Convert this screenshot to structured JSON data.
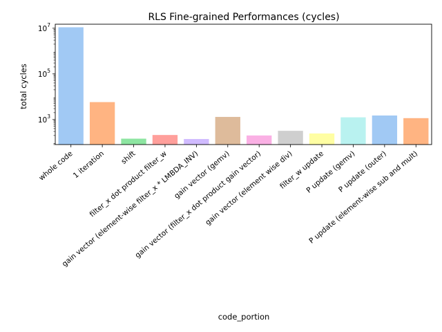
{
  "chart_data": {
    "type": "bar",
    "title": "RLS Fine-grained Performances (cycles)",
    "xlabel": "code_portion",
    "ylabel": "total cycles",
    "yscale": "log",
    "ylim": [
      80,
      15000000
    ],
    "yticks": [
      {
        "value": 1000,
        "base": "10",
        "exp": "3"
      },
      {
        "value": 100000,
        "base": "10",
        "exp": "5"
      },
      {
        "value": 10000000,
        "base": "10",
        "exp": "7"
      }
    ],
    "grid": false,
    "legend": "none",
    "categories": [
      "whole code",
      "1 iteration",
      "shift",
      "filter_x dot product filter_w",
      "gain vector (element-wise filter_x * LMBDA_INV)",
      "gain vector (gemv)",
      "gain vector (filter_x dot product gain vector)",
      "gain vector (element wise div)",
      "filter_w update",
      "P update (gemv)",
      "P update (outer)",
      "P update (element-wise sub and mult)"
    ],
    "values": [
      11000000,
      5800,
      145,
      210,
      140,
      1300,
      200,
      320,
      245,
      1250,
      1500,
      1150
    ],
    "colors": [
      "#a1c9f4",
      "#ffb482",
      "#8de5a1",
      "#ff9f9b",
      "#d0bbff",
      "#debb9b",
      "#fab0e4",
      "#cfcfcf",
      "#fffea3",
      "#b9f2f0",
      "#a1c9f4",
      "#ffb482"
    ]
  }
}
